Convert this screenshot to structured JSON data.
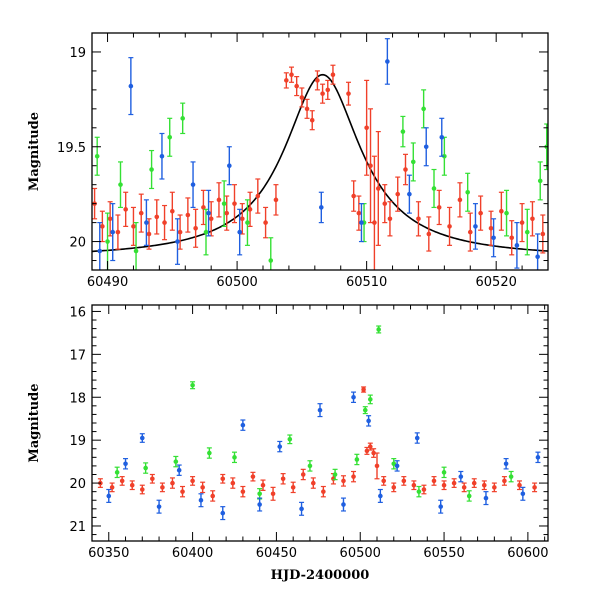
{
  "colors": {
    "red": "#f0402a",
    "green": "#34e034",
    "blue": "#1f5fe0",
    "model": "#000000"
  },
  "chart_data": [
    {
      "type": "scatter",
      "panel": "top",
      "title": "",
      "xlabel": "",
      "ylabel": "Magnitude",
      "xlim": [
        60488.8,
        60524
      ],
      "ylim": [
        20.15,
        18.9
      ],
      "y_inverted": true,
      "xticks": [
        60490,
        60500,
        60510,
        60520
      ],
      "yticks": [
        19,
        19.5,
        20
      ],
      "grid": false,
      "legend": "none",
      "model_curve": {
        "shape": "lorentzian",
        "center": 60506.6,
        "peak_mag": 19.12,
        "baseline_mag": 20.09,
        "half_width": 3.6
      },
      "series": [
        {
          "color": "red",
          "points": [
            [
              60489.0,
              19.8,
              0.08
            ],
            [
              60489.6,
              19.92,
              0.08
            ],
            [
              60490.2,
              19.88,
              0.09
            ],
            [
              60490.8,
              19.95,
              0.09
            ],
            [
              60491.4,
              19.83,
              0.09
            ],
            [
              60492.0,
              19.92,
              0.1
            ],
            [
              60492.6,
              19.85,
              0.1
            ],
            [
              60493.2,
              19.96,
              0.08
            ],
            [
              60493.8,
              19.87,
              0.09
            ],
            [
              60494.4,
              19.9,
              0.09
            ],
            [
              60495.0,
              19.84,
              0.1
            ],
            [
              60495.6,
              19.95,
              0.09
            ],
            [
              60496.2,
              19.86,
              0.09
            ],
            [
              60496.8,
              19.93,
              0.1
            ],
            [
              60497.4,
              19.82,
              0.09
            ],
            [
              60498.0,
              19.88,
              0.09
            ],
            [
              60498.6,
              19.78,
              0.09
            ],
            [
              60499.2,
              19.85,
              0.09
            ],
            [
              60499.8,
              19.8,
              0.1
            ],
            [
              60500.4,
              19.88,
              0.08
            ],
            [
              60501.0,
              19.83,
              0.09
            ],
            [
              60501.6,
              19.76,
              0.09
            ],
            [
              60502.2,
              19.9,
              0.08
            ],
            [
              60503.0,
              19.78,
              0.08
            ],
            [
              60503.8,
              19.15,
              0.04
            ],
            [
              60504.2,
              19.12,
              0.04
            ],
            [
              60504.6,
              19.18,
              0.05
            ],
            [
              60505.0,
              19.24,
              0.05
            ],
            [
              60505.4,
              19.3,
              0.05
            ],
            [
              60505.8,
              19.36,
              0.05
            ],
            [
              60506.2,
              19.15,
              0.05
            ],
            [
              60506.6,
              19.22,
              0.05
            ],
            [
              60507.0,
              19.2,
              0.05
            ],
            [
              60507.4,
              19.12,
              0.05
            ],
            [
              60508.6,
              19.22,
              0.06
            ],
            [
              60509.0,
              19.76,
              0.08
            ],
            [
              60509.4,
              19.85,
              0.09
            ],
            [
              60510.0,
              19.4,
              0.25
            ],
            [
              60510.3,
              19.6,
              0.3
            ],
            [
              60510.6,
              19.9,
              0.35
            ],
            [
              60510.9,
              19.72,
              0.3
            ],
            [
              60511.4,
              19.8,
              0.1
            ],
            [
              60511.8,
              19.88,
              0.09
            ],
            [
              60512.4,
              19.75,
              0.09
            ],
            [
              60513.0,
              19.62,
              0.08
            ],
            [
              60514.0,
              19.88,
              0.09
            ],
            [
              60514.8,
              19.96,
              0.09
            ],
            [
              60515.6,
              19.82,
              0.09
            ],
            [
              60516.4,
              19.92,
              0.1
            ],
            [
              60517.2,
              19.78,
              0.09
            ],
            [
              60518.0,
              19.95,
              0.1
            ],
            [
              60518.8,
              19.85,
              0.09
            ],
            [
              60519.6,
              19.93,
              0.09
            ],
            [
              60520.4,
              19.84,
              0.1
            ],
            [
              60521.2,
              19.98,
              0.09
            ],
            [
              60522.0,
              19.9,
              0.1
            ],
            [
              60522.8,
              19.88,
              0.09
            ],
            [
              60523.6,
              19.96,
              0.1
            ]
          ]
        },
        {
          "color": "green",
          "points": [
            [
              60489.2,
              19.55,
              0.1
            ],
            [
              60490.0,
              20.0,
              0.15
            ],
            [
              60491.0,
              19.7,
              0.12
            ],
            [
              60492.2,
              20.05,
              0.15
            ],
            [
              60493.4,
              19.62,
              0.1
            ],
            [
              60494.8,
              19.45,
              0.1
            ],
            [
              60495.8,
              19.35,
              0.08
            ],
            [
              60497.6,
              19.95,
              0.12
            ],
            [
              60499.0,
              19.8,
              0.12
            ],
            [
              60500.8,
              19.9,
              0.12
            ],
            [
              60502.6,
              20.1,
              0.12
            ],
            [
              60509.8,
              19.9,
              0.1
            ],
            [
              60512.8,
              19.42,
              0.08
            ],
            [
              60513.6,
              19.58,
              0.1
            ],
            [
              60514.4,
              19.3,
              0.1
            ],
            [
              60515.2,
              19.72,
              0.1
            ],
            [
              60516.0,
              19.55,
              0.1
            ],
            [
              60517.8,
              19.74,
              0.1
            ],
            [
              60520.8,
              19.85,
              0.12
            ],
            [
              60522.4,
              19.95,
              0.12
            ],
            [
              60523.4,
              19.68,
              0.1
            ],
            [
              60523.9,
              19.5,
              0.12
            ]
          ]
        },
        {
          "color": "blue",
          "points": [
            [
              60489.4,
              20.05,
              0.15
            ],
            [
              60490.4,
              19.95,
              0.15
            ],
            [
              60491.8,
              19.18,
              0.15
            ],
            [
              60493.0,
              19.9,
              0.12
            ],
            [
              60494.2,
              19.55,
              0.12
            ],
            [
              60495.4,
              20.0,
              0.12
            ],
            [
              60496.6,
              19.7,
              0.12
            ],
            [
              60497.8,
              19.85,
              0.12
            ],
            [
              60499.4,
              19.6,
              0.1
            ],
            [
              60500.2,
              19.95,
              0.12
            ],
            [
              60506.5,
              19.82,
              0.08
            ],
            [
              60509.6,
              19.9,
              0.1
            ],
            [
              60511.6,
              19.05,
              0.12
            ],
            [
              60513.3,
              19.75,
              0.1
            ],
            [
              60514.6,
              19.5,
              0.1
            ],
            [
              60515.8,
              19.45,
              0.1
            ],
            [
              60518.4,
              19.92,
              0.12
            ],
            [
              60519.8,
              19.98,
              0.1
            ],
            [
              60521.6,
              20.02,
              0.12
            ],
            [
              60523.2,
              20.08,
              0.12
            ]
          ]
        }
      ]
    },
    {
      "type": "scatter",
      "panel": "bottom",
      "title": "",
      "xlabel": "HJD-2400000",
      "ylabel": "Magnitude",
      "xlim": [
        60340,
        60612
      ],
      "ylim": [
        21.35,
        15.85
      ],
      "y_inverted": true,
      "xticks": [
        60350,
        60400,
        60450,
        60500,
        60550,
        60600
      ],
      "yticks": [
        16,
        17,
        18,
        19,
        20,
        21
      ],
      "grid": false,
      "legend": "none",
      "series": [
        {
          "color": "red",
          "points": [
            [
              60345,
              20.0,
              0.1
            ],
            [
              60352,
              20.1,
              0.1
            ],
            [
              60358,
              19.95,
              0.1
            ],
            [
              60364,
              20.05,
              0.1
            ],
            [
              60370,
              20.15,
              0.1
            ],
            [
              60376,
              19.9,
              0.1
            ],
            [
              60382,
              20.1,
              0.1
            ],
            [
              60388,
              20.0,
              0.12
            ],
            [
              60394,
              20.2,
              0.12
            ],
            [
              60400,
              19.95,
              0.1
            ],
            [
              60406,
              20.1,
              0.12
            ],
            [
              60412,
              20.3,
              0.12
            ],
            [
              60418,
              19.9,
              0.1
            ],
            [
              60424,
              20.0,
              0.12
            ],
            [
              60430,
              20.2,
              0.12
            ],
            [
              60436,
              19.85,
              0.1
            ],
            [
              60442,
              20.05,
              0.12
            ],
            [
              60448,
              20.25,
              0.15
            ],
            [
              60454,
              19.9,
              0.12
            ],
            [
              60460,
              20.1,
              0.12
            ],
            [
              60466,
              19.8,
              0.12
            ],
            [
              60472,
              20.0,
              0.12
            ],
            [
              60478,
              20.2,
              0.12
            ],
            [
              60484,
              19.9,
              0.12
            ],
            [
              60490,
              19.95,
              0.12
            ],
            [
              60496,
              19.85,
              0.12
            ],
            [
              60502,
              17.82,
              0.06
            ],
            [
              60504,
              19.25,
              0.08
            ],
            [
              60506,
              19.15,
              0.08
            ],
            [
              60508,
              19.3,
              0.1
            ],
            [
              60510,
              19.6,
              0.3
            ],
            [
              60514,
              19.95,
              0.1
            ],
            [
              60520,
              20.1,
              0.1
            ],
            [
              60526,
              19.95,
              0.1
            ],
            [
              60532,
              20.05,
              0.1
            ],
            [
              60538,
              20.15,
              0.1
            ],
            [
              60544,
              19.95,
              0.1
            ],
            [
              60550,
              20.05,
              0.1
            ],
            [
              60556,
              20.0,
              0.1
            ],
            [
              60562,
              20.1,
              0.1
            ],
            [
              60568,
              20.0,
              0.1
            ],
            [
              60574,
              20.05,
              0.1
            ],
            [
              60580,
              20.1,
              0.1
            ],
            [
              60586,
              19.95,
              0.1
            ],
            [
              60595,
              20.05,
              0.1
            ],
            [
              60604,
              20.1,
              0.1
            ]
          ]
        },
        {
          "color": "green",
          "points": [
            [
              60355,
              19.75,
              0.12
            ],
            [
              60372,
              19.65,
              0.12
            ],
            [
              60390,
              19.5,
              0.12
            ],
            [
              60400,
              17.72,
              0.08
            ],
            [
              60410,
              19.3,
              0.12
            ],
            [
              60425,
              19.4,
              0.12
            ],
            [
              60440,
              20.25,
              0.12
            ],
            [
              60458,
              18.98,
              0.1
            ],
            [
              60470,
              19.6,
              0.12
            ],
            [
              60485,
              19.8,
              0.12
            ],
            [
              60498,
              19.45,
              0.12
            ],
            [
              60503,
              18.3,
              0.08
            ],
            [
              60506,
              18.05,
              0.1
            ],
            [
              60511,
              16.42,
              0.08
            ],
            [
              60520,
              19.55,
              0.12
            ],
            [
              60535,
              20.2,
              0.12
            ],
            [
              60550,
              19.75,
              0.12
            ],
            [
              60565,
              20.3,
              0.12
            ],
            [
              60590,
              19.85,
              0.12
            ]
          ]
        },
        {
          "color": "blue",
          "points": [
            [
              60350,
              20.3,
              0.15
            ],
            [
              60360,
              19.55,
              0.12
            ],
            [
              60370,
              18.95,
              0.1
            ],
            [
              60380,
              20.55,
              0.15
            ],
            [
              60392,
              19.7,
              0.12
            ],
            [
              60405,
              20.4,
              0.15
            ],
            [
              60418,
              20.7,
              0.15
            ],
            [
              60430,
              18.65,
              0.12
            ],
            [
              60440,
              20.5,
              0.15
            ],
            [
              60452,
              19.15,
              0.12
            ],
            [
              60465,
              20.6,
              0.15
            ],
            [
              60476,
              18.3,
              0.15
            ],
            [
              60490,
              20.5,
              0.15
            ],
            [
              60496,
              18.0,
              0.12
            ],
            [
              60505,
              18.55,
              0.12
            ],
            [
              60512,
              20.3,
              0.15
            ],
            [
              60522,
              19.6,
              0.12
            ],
            [
              60534,
              18.95,
              0.12
            ],
            [
              60548,
              20.55,
              0.15
            ],
            [
              60560,
              19.85,
              0.12
            ],
            [
              60575,
              20.35,
              0.15
            ],
            [
              60587,
              19.55,
              0.12
            ],
            [
              60597,
              20.25,
              0.15
            ],
            [
              60606,
              19.4,
              0.12
            ]
          ]
        }
      ]
    }
  ]
}
